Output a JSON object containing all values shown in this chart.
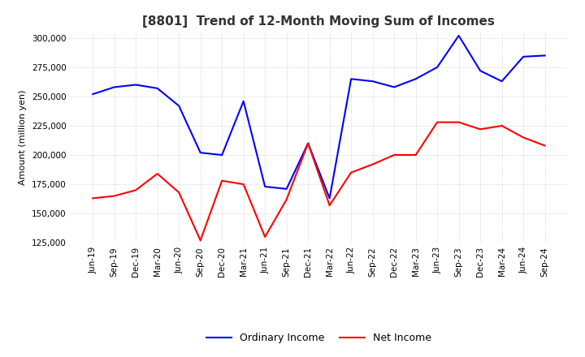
{
  "title": "[8801]  Trend of 12-Month Moving Sum of Incomes",
  "ylabel": "Amount (million yen)",
  "ylim": [
    125000,
    305000
  ],
  "yticks": [
    125000,
    150000,
    175000,
    200000,
    225000,
    250000,
    275000,
    300000
  ],
  "x_labels": [
    "Jun-19",
    "Sep-19",
    "Dec-19",
    "Mar-20",
    "Jun-20",
    "Sep-20",
    "Dec-20",
    "Mar-21",
    "Jun-21",
    "Sep-21",
    "Dec-21",
    "Mar-22",
    "Jun-22",
    "Sep-22",
    "Dec-22",
    "Mar-23",
    "Jun-23",
    "Sep-23",
    "Dec-23",
    "Mar-24",
    "Jun-24",
    "Sep-24"
  ],
  "ordinary_income": [
    252000,
    258000,
    260000,
    257000,
    242000,
    202000,
    200000,
    246000,
    173000,
    171000,
    210000,
    163000,
    265000,
    263000,
    258000,
    265000,
    275000,
    302000,
    272000,
    263000,
    284000,
    285000
  ],
  "net_income": [
    163000,
    165000,
    170000,
    184000,
    168000,
    127000,
    178000,
    175000,
    130000,
    162000,
    210000,
    157000,
    185000,
    192000,
    200000,
    200000,
    228000,
    228000,
    222000,
    225000,
    215000,
    208000
  ],
  "ordinary_color": "#0000ff",
  "net_color": "#ff0000",
  "grid_color": "#bbbbbb",
  "background_color": "#ffffff",
  "title_fontsize": 11,
  "label_fontsize": 8,
  "tick_fontsize": 7.5,
  "legend_fontsize": 9
}
